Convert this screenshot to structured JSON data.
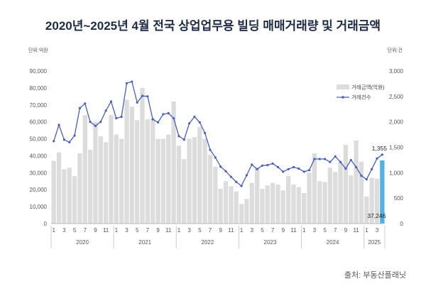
{
  "title": "2020년~2025년 4월 전국 상업업무용 빌딩 매매거래량 및 거래금액",
  "source": "출처: 부동산플래닛",
  "chart_data": {
    "type": "bar+line",
    "left_axis_unit": "단위:억원",
    "right_axis_unit": "단위:건",
    "left_ylim": [
      0,
      90000
    ],
    "left_ticks": [
      "0",
      "10,000",
      "20,000",
      "30,000",
      "40,000",
      "50,000",
      "60,000",
      "70,000",
      "80,000",
      "90,000"
    ],
    "right_ylim": [
      0,
      3000
    ],
    "right_ticks": [
      "0",
      "500",
      "1,000",
      "1,500",
      "2,000",
      "2,500",
      "3,000"
    ],
    "month_labels": [
      "1",
      "",
      "3",
      "",
      "5",
      "",
      "7",
      "",
      "9",
      "",
      "11",
      "",
      "1",
      "",
      "3",
      "",
      "5",
      "",
      "7",
      "",
      "9",
      "",
      "11",
      "",
      "1",
      "",
      "3",
      "",
      "5",
      "",
      "7",
      "",
      "9",
      "",
      "11",
      "",
      "1",
      "",
      "3",
      "",
      "5",
      "",
      "7",
      "",
      "9",
      "",
      "11",
      "",
      "1",
      "",
      "3",
      "",
      "5",
      "",
      "7",
      "",
      "9",
      "",
      "11",
      "",
      "1",
      "",
      "3",
      ""
    ],
    "years": [
      {
        "label": "2020",
        "start": 0,
        "count": 12
      },
      {
        "label": "2021",
        "start": 12,
        "count": 12
      },
      {
        "label": "2022",
        "start": 24,
        "count": 12
      },
      {
        "label": "2023",
        "start": 36,
        "count": 12
      },
      {
        "label": "2024",
        "start": 48,
        "count": 12
      },
      {
        "label": "2025",
        "start": 60,
        "count": 4
      }
    ],
    "legend_position": "top-right",
    "gridlines": false,
    "series": [
      {
        "name": "거래금액(억원)",
        "type": "bar",
        "axis": "left",
        "color": "#dcdcdc",
        "values": [
          37000,
          42000,
          32000,
          33000,
          28000,
          41500,
          64000,
          43500,
          60000,
          51500,
          48000,
          64000,
          52500,
          50000,
          73000,
          69000,
          61000,
          80000,
          61500,
          62000,
          50000,
          50000,
          52500,
          72000,
          46000,
          38000,
          50000,
          51000,
          57000,
          50000,
          40500,
          33500,
          20500,
          25000,
          22000,
          19000,
          11500,
          14500,
          24000,
          33000,
          20500,
          22500,
          24000,
          23000,
          19500,
          28000,
          23000,
          21500,
          18000,
          30000,
          41500,
          25000,
          24500,
          33000,
          30500,
          36000,
          46500,
          28500,
          49000,
          36500,
          16000,
          27000,
          26500,
          37246
        ],
        "highlight": {
          "index": 63,
          "color": "#4fb2e2",
          "label": "37,246"
        }
      },
      {
        "name": "거래건수",
        "type": "line",
        "axis": "right",
        "color": "#4a5fb8",
        "values": [
          1620,
          1940,
          1650,
          1600,
          1730,
          2270,
          2360,
          2000,
          1920,
          2000,
          2220,
          2400,
          2070,
          2100,
          2760,
          2790,
          2380,
          2510,
          2500,
          2050,
          1990,
          2150,
          2170,
          2070,
          1720,
          1650,
          1970,
          2100,
          1990,
          1780,
          1450,
          1300,
          1120,
          1030,
          920,
          820,
          740,
          950,
          1160,
          1070,
          1140,
          1150,
          1180,
          1110,
          1020,
          1070,
          1110,
          1080,
          1020,
          1050,
          1270,
          1270,
          1270,
          1210,
          1320,
          1210,
          1080,
          1250,
          1110,
          940,
          870,
          1070,
          1280,
          1355
        ],
        "end_label": "1,355"
      }
    ]
  }
}
